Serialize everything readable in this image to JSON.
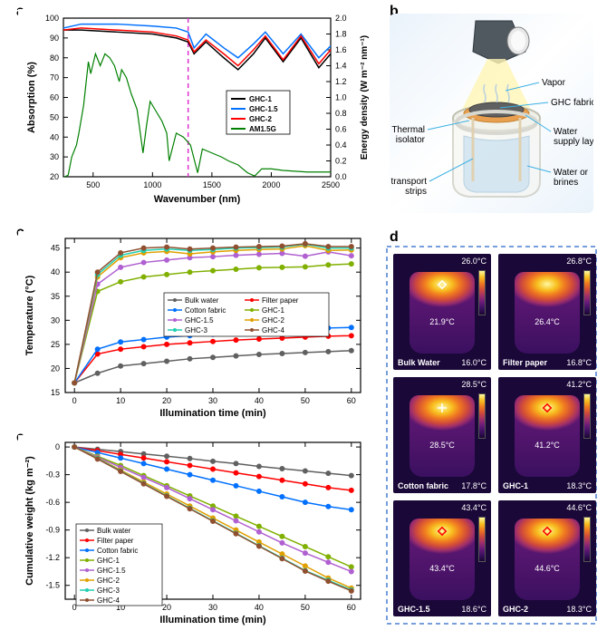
{
  "panel_a": {
    "label": "a",
    "xlabel": "Wavenumber (nm)",
    "ylabel_left": "Absorption (%)",
    "ylabel_right": "Energy density (W m⁻² nm⁻¹)",
    "xlim": [
      250,
      2500
    ],
    "xticks": [
      500,
      1000,
      1500,
      2000,
      2500
    ],
    "ylim_left": [
      20,
      100
    ],
    "yticks_left": [
      20,
      30,
      40,
      50,
      60,
      70,
      80,
      90,
      100
    ],
    "ylim_right": [
      0,
      2.0
    ],
    "yticks_right": [
      0.0,
      0.2,
      0.4,
      0.6,
      0.8,
      1.0,
      1.2,
      1.4,
      1.6,
      1.8,
      2.0
    ],
    "vline_x": 1300,
    "vline_color": "#e030d0",
    "vline_dash": "5,4",
    "background_color": "#ffffff",
    "axis_color": "#000000",
    "label_fontsize": 11,
    "tick_fontsize": 9,
    "series": {
      "ghc1": {
        "name": "GHC-1",
        "color": "#000000",
        "width": 1.5,
        "x": [
          250,
          400,
          700,
          1000,
          1200,
          1300,
          1350,
          1450,
          1600,
          1720,
          1850,
          1950,
          2100,
          2250,
          2400,
          2500
        ],
        "y": [
          94,
          94,
          93,
          92,
          90,
          88,
          82,
          88,
          80,
          74,
          82,
          90,
          78,
          90,
          75,
          82
        ]
      },
      "ghc15": {
        "name": "GHC-1.5",
        "color": "#0070ff",
        "width": 1.5,
        "x": [
          250,
          400,
          700,
          1000,
          1200,
          1300,
          1350,
          1450,
          1600,
          1720,
          1850,
          1950,
          2100,
          2250,
          2400,
          2500
        ],
        "y": [
          95,
          97,
          97,
          96,
          95,
          93,
          85,
          92,
          85,
          80,
          87,
          93,
          82,
          92,
          80,
          86
        ]
      },
      "ghc2": {
        "name": "GHC-2",
        "color": "#ff0000",
        "width": 1.5,
        "x": [
          250,
          400,
          700,
          1000,
          1200,
          1300,
          1350,
          1450,
          1600,
          1720,
          1850,
          1950,
          2100,
          2250,
          2400,
          2500
        ],
        "y": [
          94,
          95,
          94,
          93,
          91,
          89,
          83,
          89,
          82,
          76,
          84,
          91,
          79,
          91,
          77,
          84
        ]
      },
      "am15g": {
        "name": "AM1.5G",
        "color": "#008000",
        "width": 1.2,
        "x": [
          260,
          290,
          320,
          360,
          380,
          420,
          460,
          480,
          520,
          560,
          600,
          640,
          680,
          720,
          740,
          780,
          820,
          870,
          920,
          950,
          980,
          1040,
          1080,
          1120,
          1140,
          1200,
          1260,
          1320,
          1380,
          1420,
          1500,
          1580,
          1640,
          1720,
          1800,
          1860,
          1920,
          2000,
          2100,
          2200,
          2300,
          2400,
          2500
        ],
        "y_right": [
          0,
          0.02,
          0.25,
          0.4,
          0.55,
          0.9,
          1.45,
          1.3,
          1.55,
          1.4,
          1.55,
          1.5,
          1.4,
          1.2,
          1.35,
          1.25,
          1.05,
          0.85,
          0.3,
          0.65,
          0.95,
          0.8,
          0.7,
          0.55,
          0.2,
          0.55,
          0.5,
          0.4,
          0.05,
          0.35,
          0.3,
          0.25,
          0.2,
          0.15,
          0.05,
          0.01,
          0.1,
          0.1,
          0.08,
          0.07,
          0.06,
          0.06,
          0.06
        ]
      }
    },
    "legend_items": [
      "GHC-1",
      "GHC-1.5",
      "GHC-2",
      "AM1.5G"
    ]
  },
  "panel_b": {
    "label": "b",
    "background_gradient": [
      "#eaf3fb",
      "#ffffff",
      "#eaf3fb"
    ],
    "beam_color": "#fff5b5",
    "callouts": {
      "vapor": "Vapor",
      "ghc": "GHC fabric",
      "isolator": "Thermal\nisolator",
      "supply": "Water\nsupply layer",
      "strips": "Water transport\nstrips",
      "brines": "Water or\nbrines"
    },
    "callout_line_color": "#3bb0e5",
    "callout_fontsize": 10
  },
  "panel_c": {
    "label": "c",
    "xlabel": "Illumination time (min)",
    "ylabel": "Temperature (°C)",
    "xlim": [
      -2,
      62
    ],
    "xticks": [
      0,
      10,
      20,
      30,
      40,
      50,
      60
    ],
    "ylim": [
      15,
      47
    ],
    "yticks": [
      15,
      20,
      25,
      30,
      35,
      40,
      45
    ],
    "background_color": "#ffffff",
    "label_fontsize": 11,
    "tick_fontsize": 9,
    "marker_size": 4,
    "series": {
      "bulk": {
        "name": "Bulk water",
        "color": "#606060",
        "x": [
          0,
          5,
          10,
          15,
          20,
          25,
          30,
          35,
          40,
          45,
          50,
          55,
          60
        ],
        "y": [
          17,
          19,
          20.5,
          21,
          21.5,
          22,
          22.3,
          22.6,
          22.9,
          23.1,
          23.3,
          23.5,
          23.7
        ]
      },
      "filter": {
        "name": "Filter paper",
        "color": "#ff0000",
        "x": [
          0,
          5,
          10,
          15,
          20,
          25,
          30,
          35,
          40,
          45,
          50,
          55,
          60
        ],
        "y": [
          17,
          23,
          24,
          24.5,
          25,
          25.3,
          25.6,
          25.9,
          26.1,
          26.3,
          26.5,
          26.7,
          26.8
        ]
      },
      "cotton": {
        "name": "Cotton fabric",
        "color": "#0070ff",
        "x": [
          0,
          5,
          10,
          15,
          20,
          25,
          30,
          35,
          40,
          45,
          50,
          55,
          60
        ],
        "y": [
          17,
          24,
          25.5,
          26,
          26.5,
          26.8,
          27.1,
          27.4,
          27.7,
          28,
          28.2,
          28.4,
          28.5
        ]
      },
      "ghc1": {
        "name": "GHC-1",
        "color": "#80b000",
        "x": [
          0,
          5,
          10,
          15,
          20,
          25,
          30,
          35,
          40,
          45,
          50,
          55,
          60
        ],
        "y": [
          17,
          36,
          38,
          39,
          39.5,
          40,
          40.3,
          40.6,
          40.9,
          41,
          41.1,
          41.5,
          41.7
        ]
      },
      "ghc15": {
        "name": "GHC-1.5",
        "color": "#b060d0",
        "x": [
          0,
          5,
          10,
          15,
          20,
          25,
          30,
          35,
          40,
          45,
          50,
          55,
          60
        ],
        "y": [
          17,
          37.5,
          41,
          42,
          42.5,
          43,
          43.2,
          43.5,
          43.7,
          43.9,
          43.3,
          44.2,
          43.4
        ]
      },
      "ghc2": {
        "name": "GHC-2",
        "color": "#e0a000",
        "x": [
          0,
          5,
          10,
          15,
          20,
          25,
          30,
          35,
          40,
          45,
          50,
          55,
          60
        ],
        "y": [
          17,
          39,
          43,
          44,
          44.3,
          43.8,
          44.2,
          44.5,
          44.7,
          44.8,
          45.5,
          44.5,
          44.6
        ]
      },
      "ghc3": {
        "name": "GHC-3",
        "color": "#20d0b0",
        "x": [
          0,
          5,
          10,
          15,
          20,
          25,
          30,
          35,
          40,
          45,
          50,
          55,
          60
        ],
        "y": [
          17,
          39.5,
          43.5,
          44.5,
          44.8,
          44.5,
          44.7,
          45,
          45.1,
          45.2,
          45.8,
          45,
          45
        ]
      },
      "ghc4": {
        "name": "GHC-4",
        "color": "#905030",
        "x": [
          0,
          5,
          10,
          15,
          20,
          25,
          30,
          35,
          40,
          45,
          50,
          55,
          60
        ],
        "y": [
          17,
          40,
          44,
          45,
          45.2,
          44.8,
          45,
          45.2,
          45.3,
          45.4,
          45.9,
          45.3,
          45.3
        ]
      }
    },
    "legend_cols": [
      [
        "Bulk water",
        "Cotton fabric",
        "GHC-1.5",
        "GHC-3"
      ],
      [
        "Filter paper",
        "GHC-1",
        "GHC-2",
        "GHC-4"
      ]
    ]
  },
  "panel_e": {
    "label": "e",
    "xlabel": "Illumination time (min)",
    "ylabel": "Cumulative weight (kg m⁻²)",
    "xlim": [
      -2,
      62
    ],
    "xticks": [
      0,
      10,
      20,
      30,
      40,
      50,
      60
    ],
    "ylim": [
      -1.65,
      0.05
    ],
    "yticks": [
      0,
      -0.3,
      -0.6,
      -0.9,
      -1.2,
      -1.5
    ],
    "background_color": "#ffffff",
    "label_fontsize": 11,
    "tick_fontsize": 9,
    "marker_size": 4,
    "series": {
      "bulk": {
        "name": "Bulk water",
        "color": "#606060",
        "x": [
          0,
          5,
          10,
          15,
          20,
          25,
          30,
          35,
          40,
          45,
          50,
          55,
          60
        ],
        "y": [
          0,
          -0.025,
          -0.05,
          -0.075,
          -0.1,
          -0.125,
          -0.155,
          -0.18,
          -0.21,
          -0.235,
          -0.26,
          -0.285,
          -0.31
        ]
      },
      "filter": {
        "name": "Filter paper",
        "color": "#ff0000",
        "x": [
          0,
          5,
          10,
          15,
          20,
          25,
          30,
          35,
          40,
          45,
          50,
          55,
          60
        ],
        "y": [
          0,
          -0.04,
          -0.08,
          -0.12,
          -0.16,
          -0.2,
          -0.24,
          -0.28,
          -0.32,
          -0.36,
          -0.4,
          -0.44,
          -0.47
        ]
      },
      "cotton": {
        "name": "Cotton fabric",
        "color": "#0070ff",
        "x": [
          0,
          5,
          10,
          15,
          20,
          25,
          30,
          35,
          40,
          45,
          50,
          55,
          60
        ],
        "y": [
          0,
          -0.06,
          -0.12,
          -0.18,
          -0.24,
          -0.3,
          -0.36,
          -0.42,
          -0.48,
          -0.54,
          -0.6,
          -0.645,
          -0.68
        ]
      },
      "ghc1": {
        "name": "GHC-1",
        "color": "#80b000",
        "x": [
          0,
          5,
          10,
          15,
          20,
          25,
          30,
          35,
          40,
          45,
          50,
          55,
          60
        ],
        "y": [
          0,
          -0.1,
          -0.2,
          -0.31,
          -0.42,
          -0.53,
          -0.64,
          -0.75,
          -0.86,
          -0.97,
          -1.08,
          -1.19,
          -1.3
        ]
      },
      "ghc15": {
        "name": "GHC-1.5",
        "color": "#b060d0",
        "x": [
          0,
          5,
          10,
          15,
          20,
          25,
          30,
          35,
          40,
          45,
          50,
          55,
          60
        ],
        "y": [
          0,
          -0.11,
          -0.22,
          -0.33,
          -0.44,
          -0.56,
          -0.68,
          -0.8,
          -0.92,
          -1.04,
          -1.15,
          -1.25,
          -1.35
        ]
      },
      "ghc2": {
        "name": "GHC-2",
        "color": "#e0a000",
        "x": [
          0,
          5,
          10,
          15,
          20,
          25,
          30,
          35,
          40,
          45,
          50,
          55,
          60
        ],
        "y": [
          0,
          -0.12,
          -0.25,
          -0.38,
          -0.51,
          -0.64,
          -0.77,
          -0.9,
          -1.03,
          -1.16,
          -1.29,
          -1.42,
          -1.53
        ]
      },
      "ghc3": {
        "name": "GHC-3",
        "color": "#20d0b0",
        "x": [
          0,
          5,
          10,
          15,
          20,
          25,
          30,
          35,
          40,
          45,
          50,
          55,
          60
        ],
        "y": [
          0,
          -0.125,
          -0.26,
          -0.395,
          -0.53,
          -0.665,
          -0.8,
          -0.935,
          -1.07,
          -1.205,
          -1.34,
          -1.445,
          -1.55
        ]
      },
      "ghc4": {
        "name": "GHC-4",
        "color": "#905030",
        "x": [
          0,
          5,
          10,
          15,
          20,
          25,
          30,
          35,
          40,
          45,
          50,
          55,
          60
        ],
        "y": [
          0,
          -0.13,
          -0.265,
          -0.4,
          -0.535,
          -0.67,
          -0.805,
          -0.94,
          -1.075,
          -1.21,
          -1.345,
          -1.455,
          -1.56
        ]
      }
    },
    "legend_items": [
      "Bulk water",
      "Filter paper",
      "Cotton fabric",
      "GHC-1",
      "GHC-1.5",
      "GHC-2",
      "GHC-3",
      "GHC-4"
    ]
  },
  "panel_d": {
    "label": "d",
    "border_color": "#4a7fd0",
    "border_dash": "5,4",
    "images": [
      {
        "name": "Bulk Water",
        "max": "26.0°C",
        "min": "16.0°C",
        "center": "21.9°C",
        "marker": "diamond-open"
      },
      {
        "name": "Filter paper",
        "max": "26.8°C",
        "min": "16.8°C",
        "center": "26.4°C",
        "marker": "none"
      },
      {
        "name": "Cotton fabric",
        "max": "28.5°C",
        "min": "17.8°C",
        "center": "28.5°C",
        "marker": "cross"
      },
      {
        "name": "GHC-1",
        "max": "41.2°C",
        "min": "18.3°C",
        "center": "41.2°C",
        "marker": "diamond"
      },
      {
        "name": "GHC-1.5",
        "max": "43.4°C",
        "min": "18.6°C",
        "center": "43.4°C",
        "marker": "diamond"
      },
      {
        "name": "GHC-2",
        "max": "44.6°C",
        "min": "18.3°C",
        "center": "44.6°C",
        "marker": "diamond"
      }
    ],
    "thermal_gradient": [
      "#1a0530",
      "#3b1060",
      "#6a1a7a",
      "#a02f6a",
      "#d04a3a",
      "#f07a20",
      "#f8c020",
      "#fff8a0"
    ],
    "colorbar_gradient": [
      "#fff8a0",
      "#f8c020",
      "#f07a20",
      "#d04a3a",
      "#a02f6a",
      "#6a1a7a",
      "#3b1060",
      "#1a0530"
    ]
  }
}
